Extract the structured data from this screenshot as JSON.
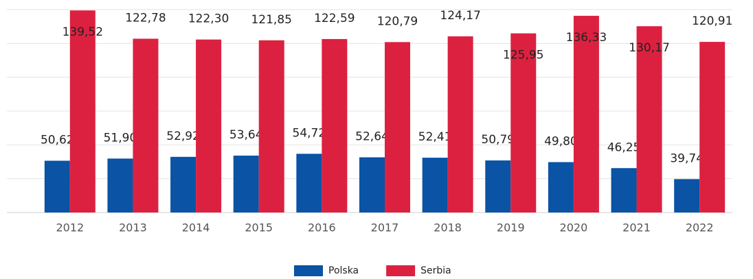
{
  "chart_data": {
    "type": "bar",
    "categories": [
      "2012",
      "2013",
      "2014",
      "2015",
      "2016",
      "2017",
      "2018",
      "2019",
      "2020",
      "2021",
      "2022"
    ],
    "series": [
      {
        "name": "Polska",
        "color": "#0a53a5",
        "values": [
          50.62,
          51.9,
          52.92,
          53.64,
          54.72,
          52.64,
          52.41,
          50.79,
          49.8,
          46.25,
          39.74
        ],
        "value_labels": [
          "50,62",
          "51,90",
          "52,92",
          "53,64",
          "54,72",
          "52,64",
          "52,41",
          "50,79",
          "49,80",
          "46,25",
          "39,74"
        ]
      },
      {
        "name": "Serbia",
        "color": "#dc2140",
        "values": [
          139.52,
          122.78,
          122.3,
          121.85,
          122.59,
          120.79,
          124.17,
          125.95,
          136.33,
          130.17,
          120.91
        ],
        "value_labels": [
          "139,52",
          "122,78",
          "122,30",
          "121,85",
          "122,59",
          "120,79",
          "124,17",
          "125,95",
          "136,33",
          "130,17",
          "120,91"
        ]
      }
    ],
    "ylim": [
      20,
      140
    ],
    "yticks": [
      20,
      40,
      60,
      80,
      100,
      120,
      140
    ],
    "grid": true,
    "legend": "bottom"
  }
}
